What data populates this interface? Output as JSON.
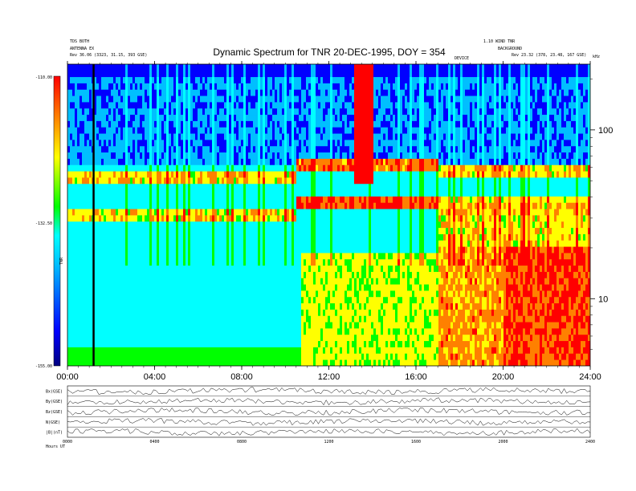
{
  "header": {
    "title": "Dynamic Spectrum for TNR 20-DEC-1995, DOY = 354",
    "top_left_line1": "TDS BOTH",
    "top_left_line2": "ANTENNA EX",
    "top_left_line3": "Rev  36.06 (3323, 31.15, 393 GSE)",
    "top_right_line1": "1.10 WIND TNR",
    "top_right_line2": "BACKGROUND",
    "top_right_line3": "Rev  23.32 (378, 23.48, 167 GSE)",
    "corner_label": "kHz",
    "mid_label": "DEVICE"
  },
  "colorbar": {
    "label_top": "-110.00",
    "label_mid": "-132.50",
    "label_bottom": "-155.00",
    "axis_label": "TNR"
  },
  "chart_data": {
    "type": "heatmap",
    "title": "Dynamic Spectrum for TNR 20-DEC-1995, DOY = 354",
    "x_ticks": [
      "00:00",
      "04:00",
      "08:00",
      "12:00",
      "16:00",
      "20:00",
      "24:00"
    ],
    "x_range_hours": [
      0,
      24
    ],
    "y_ticks": [
      "10",
      "100"
    ],
    "y_scale": "log",
    "y_range_khz": [
      4,
      245
    ],
    "colorbar_range_db": [
      -155,
      -110
    ],
    "colormap": [
      "#000080",
      "#0000ff",
      "#00bfff",
      "#00ffff",
      "#00ff00",
      "#ffff00",
      "#ff8000",
      "#ff0000"
    ],
    "features": {
      "upper_emission_band_khz": [
        48,
        60
      ],
      "lower_emission_band_khz": [
        30,
        34
      ],
      "type3_burst_hours": [
        13.2,
        14.1
      ],
      "marker_line_hour": 1.2,
      "enhanced_lowfreq_after_hour": 17.0
    }
  },
  "panels": {
    "labels": [
      "Bx(GSE)",
      "By(GSE)",
      "Bz(GSE)",
      "N(GSE)",
      "|B|(nT)"
    ],
    "x_ticks": [
      "0000",
      "0400",
      "0800",
      "1200",
      "1600",
      "2000",
      "2400"
    ],
    "footer": "Hours  UT"
  }
}
